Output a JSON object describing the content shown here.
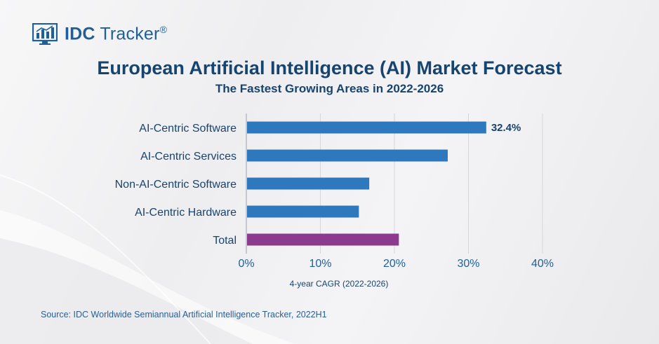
{
  "brand": {
    "name_bold": "IDC",
    "name_light": "Tracker",
    "mark": "®"
  },
  "title": "European Artificial Intelligence (AI) Market Forecast",
  "subtitle": "The Fastest Growing Areas in 2022-2026",
  "source": "Source: IDC Worldwide Semiannual Artificial Intelligence Tracker, 2022H1",
  "colors": {
    "bar": "#2e78bd",
    "total_bar": "#8b3a8e",
    "text": "#17446f",
    "grid": "#d6d6dc"
  },
  "chart_data": {
    "type": "bar",
    "orientation": "horizontal",
    "categories": [
      "AI-Centric Software",
      "AI-Centric Services",
      "Non-AI-Centric Software",
      "AI-Centric Hardware",
      "Total"
    ],
    "values": [
      32.4,
      27.2,
      16.6,
      15.2,
      20.6
    ],
    "data_labels": [
      "32.4%",
      "",
      "",
      "",
      ""
    ],
    "highlight": "Total",
    "xlabel": "4-year CAGR (2022-2026)",
    "xlim": [
      0,
      40
    ],
    "xticks": [
      "0%",
      "10%",
      "20%",
      "30%",
      "40%"
    ],
    "grid": true
  }
}
